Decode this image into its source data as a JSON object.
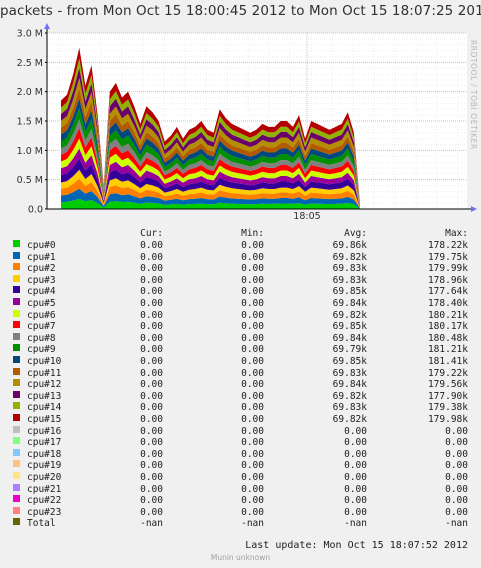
{
  "title": "packets - from Mon Oct 15 18:00:45 2012 to Mon Oct 15 18:07:25 2012",
  "watermark": "RRDTOOL / TOBI OETIKER",
  "last_update": "Last update:  Mon Oct 15 18:07:52 2012",
  "footer": "Munin unknown",
  "legend_headers": {
    "cur": "Cur:",
    "min": "Min:",
    "avg": "Avg:",
    "max": "Max:"
  },
  "legend": [
    {
      "name": "cpu#0",
      "color": "#00cc00",
      "cur": "0.00",
      "min": "0.00",
      "avg": "69.86k",
      "max": "178.22k"
    },
    {
      "name": "cpu#1",
      "color": "#0066b3",
      "cur": "0.00",
      "min": "0.00",
      "avg": "69.82k",
      "max": "179.75k"
    },
    {
      "name": "cpu#2",
      "color": "#ff8000",
      "cur": "0.00",
      "min": "0.00",
      "avg": "69.83k",
      "max": "179.99k"
    },
    {
      "name": "cpu#3",
      "color": "#ffcc00",
      "cur": "0.00",
      "min": "0.00",
      "avg": "69.83k",
      "max": "178.96k"
    },
    {
      "name": "cpu#4",
      "color": "#330099",
      "cur": "0.00",
      "min": "0.00",
      "avg": "69.85k",
      "max": "177.64k"
    },
    {
      "name": "cpu#5",
      "color": "#990099",
      "cur": "0.00",
      "min": "0.00",
      "avg": "69.84k",
      "max": "178.40k"
    },
    {
      "name": "cpu#6",
      "color": "#ccff00",
      "cur": "0.00",
      "min": "0.00",
      "avg": "69.82k",
      "max": "180.21k"
    },
    {
      "name": "cpu#7",
      "color": "#ff0000",
      "cur": "0.00",
      "min": "0.00",
      "avg": "69.85k",
      "max": "180.17k"
    },
    {
      "name": "cpu#8",
      "color": "#808080",
      "cur": "0.00",
      "min": "0.00",
      "avg": "69.84k",
      "max": "180.48k"
    },
    {
      "name": "cpu#9",
      "color": "#008f00",
      "cur": "0.00",
      "min": "0.00",
      "avg": "69.79k",
      "max": "181.21k"
    },
    {
      "name": "cpu#10",
      "color": "#00487d",
      "cur": "0.00",
      "min": "0.00",
      "avg": "69.85k",
      "max": "181.41k"
    },
    {
      "name": "cpu#11",
      "color": "#b35a00",
      "cur": "0.00",
      "min": "0.00",
      "avg": "69.83k",
      "max": "179.22k"
    },
    {
      "name": "cpu#12",
      "color": "#b38f00",
      "cur": "0.00",
      "min": "0.00",
      "avg": "69.84k",
      "max": "179.56k"
    },
    {
      "name": "cpu#13",
      "color": "#6b006b",
      "cur": "0.00",
      "min": "0.00",
      "avg": "69.82k",
      "max": "177.90k"
    },
    {
      "name": "cpu#14",
      "color": "#8fb300",
      "cur": "0.00",
      "min": "0.00",
      "avg": "69.83k",
      "max": "179.38k"
    },
    {
      "name": "cpu#15",
      "color": "#b30000",
      "cur": "0.00",
      "min": "0.00",
      "avg": "69.82k",
      "max": "179.98k"
    },
    {
      "name": "cpu#16",
      "color": "#bebebe",
      "cur": "0.00",
      "min": "0.00",
      "avg": "0.00",
      "max": "0.00"
    },
    {
      "name": "cpu#17",
      "color": "#80ff80",
      "cur": "0.00",
      "min": "0.00",
      "avg": "0.00",
      "max": "0.00"
    },
    {
      "name": "cpu#18",
      "color": "#80c9ff",
      "cur": "0.00",
      "min": "0.00",
      "avg": "0.00",
      "max": "0.00"
    },
    {
      "name": "cpu#19",
      "color": "#ffc080",
      "cur": "0.00",
      "min": "0.00",
      "avg": "0.00",
      "max": "0.00"
    },
    {
      "name": "cpu#20",
      "color": "#ffe680",
      "cur": "0.00",
      "min": "0.00",
      "avg": "0.00",
      "max": "0.00"
    },
    {
      "name": "cpu#21",
      "color": "#aa80ff",
      "cur": "0.00",
      "min": "0.00",
      "avg": "0.00",
      "max": "0.00"
    },
    {
      "name": "cpu#22",
      "color": "#ee00cc",
      "cur": "0.00",
      "min": "0.00",
      "avg": "0.00",
      "max": "0.00"
    },
    {
      "name": "cpu#23",
      "color": "#ff8080",
      "cur": "0.00",
      "min": "0.00",
      "avg": "0.00",
      "max": "0.00"
    },
    {
      "name": "Total",
      "color": "#666600",
      "cur": "-nan",
      "min": "-nan",
      "avg": "-nan",
      "max": "-nan"
    }
  ],
  "chart_data": {
    "type": "area",
    "stacked": true,
    "title": "packets - from Mon Oct 15 18:00:45 2012 to Mon Oct 15 18:07:25 2012",
    "ylim": [
      0,
      3000000
    ],
    "y_ticks": [
      0,
      500000,
      1000000,
      1500000,
      2000000,
      2500000,
      3000000
    ],
    "y_tick_labels": [
      "0.0",
      "0.5 M",
      "1.0 M",
      "1.5 M",
      "2.0 M",
      "2.5 M",
      "3.0 M"
    ],
    "x_tick_labels": [
      "18:05"
    ],
    "grid": true,
    "total_profile": {
      "x": [
        "18:00:45",
        "18:00:52",
        "18:00:58",
        "18:01:05",
        "18:01:12",
        "18:01:18",
        "18:01:25",
        "18:01:32",
        "18:01:38",
        "18:01:45",
        "18:01:52",
        "18:01:58",
        "18:02:05",
        "18:02:12",
        "18:02:18",
        "18:02:25",
        "18:02:32",
        "18:02:38",
        "18:02:45",
        "18:02:52",
        "18:02:58",
        "18:03:05",
        "18:03:12",
        "18:03:18",
        "18:03:25",
        "18:03:32",
        "18:03:38",
        "18:03:45",
        "18:03:52",
        "18:03:58",
        "18:04:05",
        "18:04:12",
        "18:04:18",
        "18:04:25",
        "18:04:32",
        "18:04:38",
        "18:04:45",
        "18:04:52",
        "18:04:58",
        "18:05:05",
        "18:05:12",
        "18:05:18",
        "18:05:25",
        "18:05:32",
        "18:05:38",
        "18:05:45",
        "18:05:52",
        "18:05:58",
        "18:06:05",
        "18:06:12"
      ],
      "values": [
        1850000,
        1950000,
        2300000,
        2750000,
        2100000,
        2450000,
        1600000,
        400000,
        2000000,
        2150000,
        1900000,
        2000000,
        1750000,
        1450000,
        1750000,
        1650000,
        1500000,
        1150000,
        1250000,
        1400000,
        1200000,
        1350000,
        1400000,
        1500000,
        1350000,
        1300000,
        1700000,
        1550000,
        1450000,
        1400000,
        1350000,
        1300000,
        1350000,
        1450000,
        1400000,
        1400000,
        1500000,
        1500000,
        1400000,
        1600000,
        1200000,
        1500000,
        1450000,
        1400000,
        1350000,
        1400000,
        1450000,
        1650000,
        1300000,
        100000
      ]
    }
  }
}
